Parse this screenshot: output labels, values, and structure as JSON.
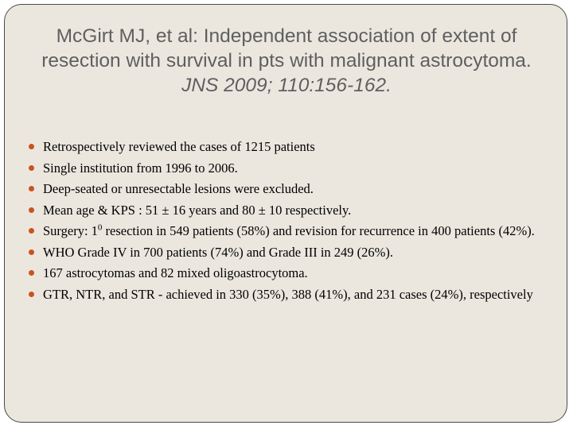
{
  "slide": {
    "title_line1": "McGirt MJ, et al: Independent association of extent of",
    "title_line2": "resection with survival in pts with malignant astrocytoma.",
    "title_citation": "JNS  2009; 110:156-162.",
    "bullets": [
      {
        "text": "Retrospectively reviewed the cases of 1215 patients"
      },
      {
        "text": "Single institution from 1996 to 2006."
      },
      {
        "text": "Deep-seated or unresectable lesions were excluded."
      },
      {
        "text": "Mean age & KPS : 51 ± 16 years and 80 ± 10 respectively."
      },
      {
        "pre": "Surgery: 1",
        "sup": "0",
        "post": " resection in 549 patients (58%) and revision for recurrence in 400 patients (42%)."
      },
      {
        "text": "WHO Grade IV in 700 patients (74%) and Grade III in 249 (26%)."
      },
      {
        "text": "167 astrocytomas and 82 mixed oligoastrocytoma."
      },
      {
        "text": "GTR, NTR, and STR - achieved in 330 (35%), 388 (41%), and 231 cases (24%), respectively"
      }
    ]
  },
  "colors": {
    "background": "#ebe7df",
    "title": "#5f5f5f",
    "bullet_dot": "#c8541c",
    "border": "#4a4a4a"
  }
}
